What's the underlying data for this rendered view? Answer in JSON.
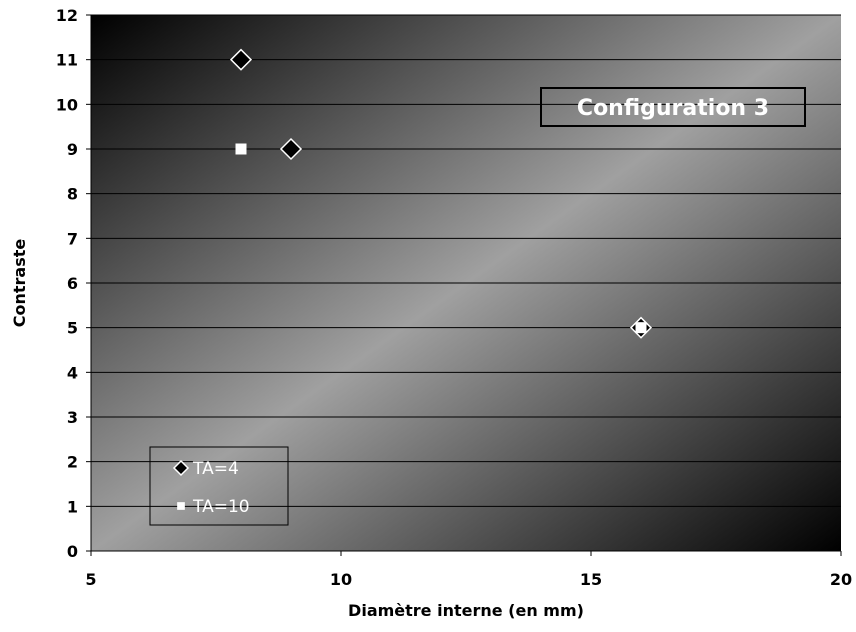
{
  "chart_data": {
    "type": "scatter",
    "title": "",
    "xlabel": "Diamètre interne (en mm)",
    "ylabel": "Contraste",
    "xlim": [
      5,
      20
    ],
    "ylim": [
      0,
      12
    ],
    "x_ticks": [
      "5",
      "10",
      "15",
      "20"
    ],
    "y_ticks": [
      "0",
      "1",
      "2",
      "3",
      "4",
      "5",
      "6",
      "7",
      "8",
      "9",
      "10",
      "11",
      "12"
    ],
    "grid": "horizontal",
    "legend_position": "bottom-left",
    "annotation": "Configuration 3",
    "series": [
      {
        "name": "TA=4",
        "marker": "diamond",
        "color": "#000000",
        "points": [
          {
            "x": 8,
            "y": 11
          },
          {
            "x": 9,
            "y": 9
          },
          {
            "x": 16,
            "y": 5
          }
        ]
      },
      {
        "name": "TA=10",
        "marker": "square",
        "color": "#ffffff",
        "points": [
          {
            "x": 8,
            "y": 9
          },
          {
            "x": 16,
            "y": 5
          }
        ]
      }
    ],
    "colors": {
      "plot_dark": "#000000",
      "plot_light": "#a0a0a0",
      "gridline": "#000000",
      "annotation_border": "#000000"
    }
  }
}
